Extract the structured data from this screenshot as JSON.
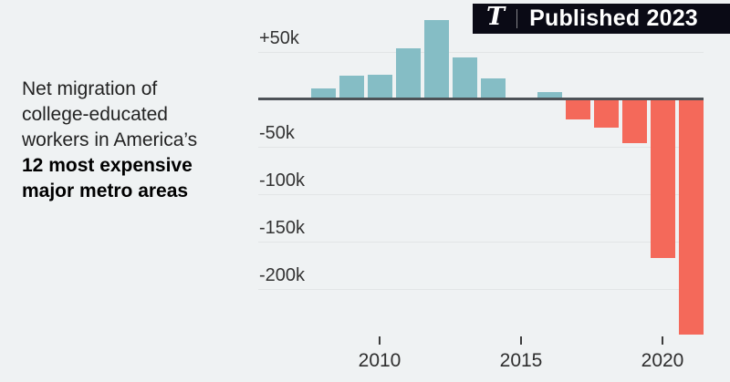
{
  "badge": {
    "logo_glyph": "T",
    "label": "Published 2023",
    "background": "#0a0a15"
  },
  "title": {
    "lines": [
      "Net migration of",
      "college-educated",
      "workers in America’s",
      "12 most expensive",
      "major metro areas"
    ]
  },
  "chart_data": {
    "type": "bar",
    "title": "Net migration of college-educated workers in America’s 12 most expensive major metro areas",
    "unit": "thousands of people",
    "x": [
      2008,
      2009,
      2010,
      2011,
      2012,
      2013,
      2014,
      2015,
      2016,
      2017,
      2018,
      2019,
      2020,
      2021
    ],
    "values_thousands": [
      12,
      25,
      26,
      54,
      84,
      44,
      22,
      0,
      8,
      -21,
      -30,
      -46,
      -167,
      -248
    ],
    "ytick_values": [
      50,
      -50,
      -100,
      -150,
      -200
    ],
    "ytick_labels": [
      "+50k",
      "-50k",
      "-100k",
      "-150k",
      "-200k"
    ],
    "xtick_values": [
      2010,
      2015,
      2020
    ],
    "xtick_labels": [
      "2010",
      "2015",
      "2020"
    ],
    "ylim": [
      -260,
      90
    ],
    "grid": "horizontal",
    "legend": "none",
    "positive_color": "#85bdc5",
    "negative_color": "#f4695a",
    "zero_line_color": "#4d5257",
    "gridline_color": "#e2e5e6",
    "background_color": "#eff2f3"
  }
}
